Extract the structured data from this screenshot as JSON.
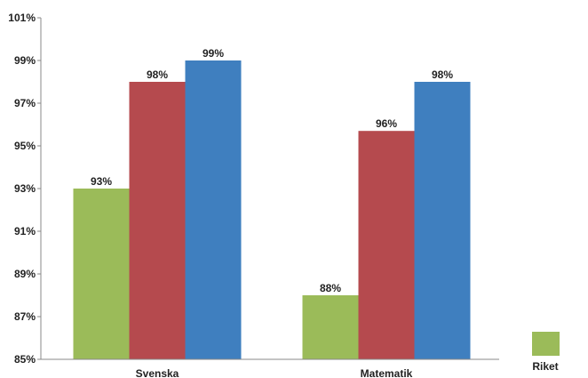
{
  "chart_data": {
    "type": "bar",
    "categories": [
      "Svenska",
      "Matematik"
    ],
    "series": [
      {
        "name": "Riket",
        "values": [
          93,
          88
        ],
        "color": "#9BBB59"
      },
      {
        "values": [
          98,
          95.7
        ],
        "color": "#B54A4E"
      },
      {
        "values": [
          99,
          98
        ],
        "color": "#3F7FBF"
      }
    ],
    "data_labels": [
      [
        "93%",
        "88%"
      ],
      [
        "98%",
        "96%"
      ],
      [
        "99%",
        "98%"
      ]
    ],
    "ylim": [
      85,
      101
    ],
    "yticks": [
      85,
      87,
      89,
      91,
      93,
      95,
      97,
      99,
      101
    ],
    "ytick_labels": [
      "85%",
      "87%",
      "89%",
      "91%",
      "93%",
      "95%",
      "97%",
      "99%",
      "101%"
    ],
    "grid": false,
    "legend_position": "bottom-right",
    "legend": [
      {
        "label": "Riket",
        "color": "#9BBB59"
      }
    ],
    "xlabel": "",
    "ylabel": "",
    "title": ""
  }
}
